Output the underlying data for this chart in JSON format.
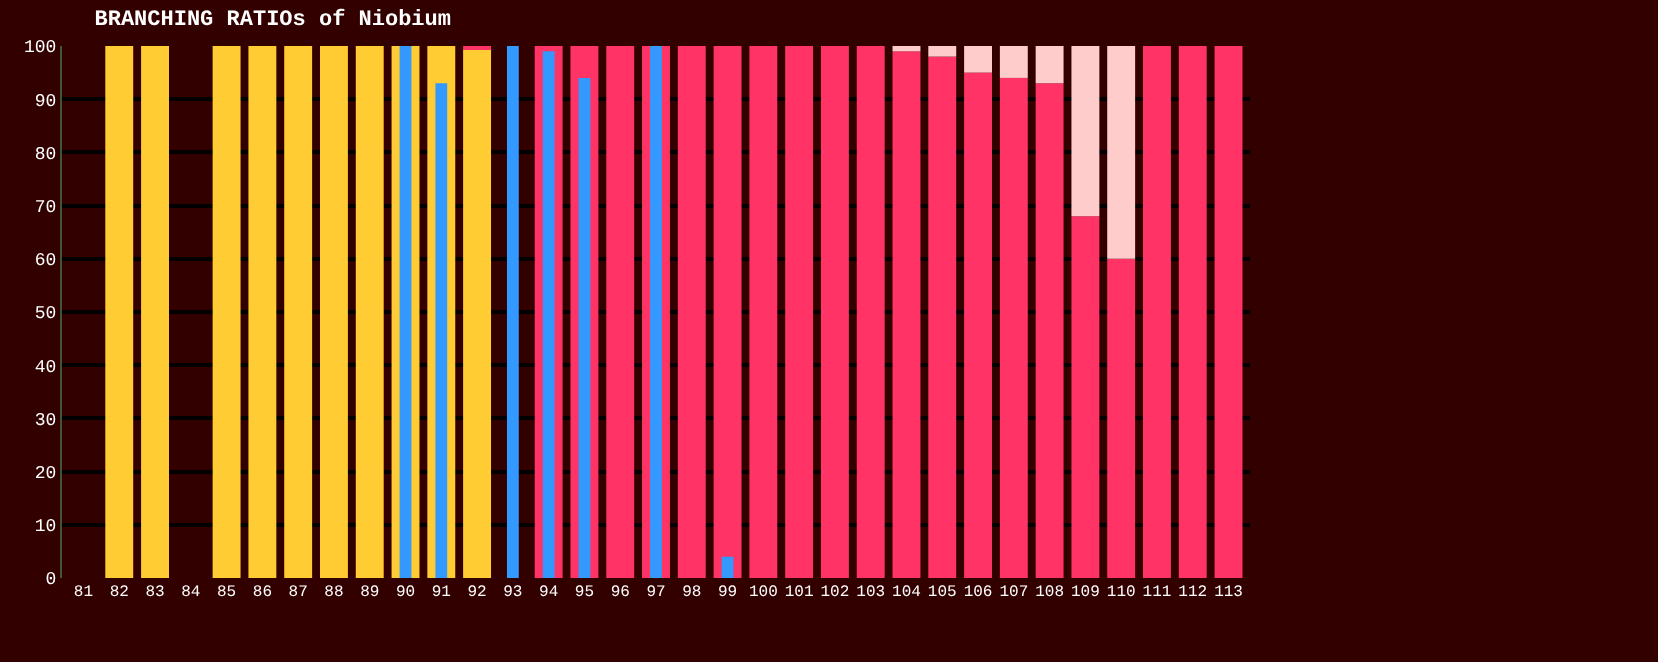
{
  "chart_data": {
    "type": "bar",
    "title": "BRANCHING RATIOs of Niobium",
    "categories": [
      "81",
      "82",
      "83",
      "84",
      "85",
      "86",
      "87",
      "88",
      "89",
      "90",
      "91",
      "92",
      "93",
      "94",
      "95",
      "96",
      "97",
      "98",
      "99",
      "100",
      "101",
      "102",
      "103",
      "104",
      "105",
      "106",
      "107",
      "108",
      "109",
      "110",
      "111",
      "112",
      "113"
    ],
    "series": [
      {
        "color": "#ffcc33",
        "values": [
          null,
          100,
          100,
          null,
          100,
          100,
          100,
          100,
          100,
          100,
          100,
          99.5,
          null,
          null,
          null,
          null,
          null,
          null,
          null,
          null,
          null,
          null,
          null,
          null,
          null,
          null,
          null,
          null,
          null,
          null,
          null,
          null,
          null
        ]
      },
      {
        "color": "#ff3366",
        "values": [
          null,
          null,
          null,
          null,
          null,
          null,
          null,
          null,
          null,
          null,
          null,
          0.5,
          null,
          100,
          100,
          100,
          100,
          100,
          100,
          100,
          100,
          100,
          100,
          99,
          98,
          95,
          94,
          93,
          68,
          60,
          100,
          100,
          100
        ],
        "base": [
          null,
          null,
          null,
          null,
          null,
          null,
          null,
          null,
          null,
          null,
          null,
          99.5,
          null,
          0,
          0,
          0,
          0,
          0,
          0,
          0,
          0,
          0,
          0,
          0,
          0,
          0,
          0,
          0,
          0,
          0,
          0,
          0,
          0
        ]
      },
      {
        "color": "#ffcccc",
        "values": [
          null,
          null,
          null,
          null,
          null,
          null,
          null,
          null,
          null,
          null,
          null,
          null,
          null,
          null,
          null,
          null,
          null,
          null,
          null,
          null,
          null,
          null,
          null,
          1,
          2,
          5,
          6,
          7,
          32,
          40,
          null,
          null,
          null
        ],
        "base": [
          null,
          null,
          null,
          null,
          null,
          null,
          null,
          null,
          null,
          null,
          null,
          null,
          null,
          null,
          null,
          null,
          null,
          null,
          null,
          null,
          null,
          null,
          null,
          99,
          98,
          95,
          94,
          93,
          68,
          60,
          null,
          null,
          null
        ]
      },
      {
        "color": "#3399ff",
        "values": [
          null,
          null,
          null,
          null,
          null,
          null,
          null,
          null,
          null,
          100,
          93,
          null,
          100,
          99,
          94,
          null,
          100,
          null,
          4,
          null,
          null,
          null,
          null,
          null,
          null,
          null,
          null,
          null,
          null,
          null,
          null,
          null,
          null
        ]
      }
    ],
    "ylim": [
      0,
      100
    ],
    "yticks": [
      0,
      10,
      20,
      30,
      40,
      50,
      60,
      70,
      80,
      90,
      100
    ],
    "grid": "y"
  }
}
